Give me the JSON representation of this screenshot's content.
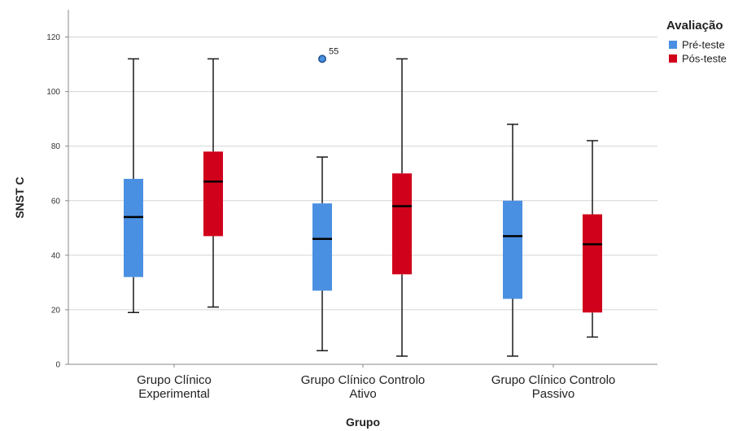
{
  "chart_data": {
    "type": "boxplot",
    "xlabel": "Grupo",
    "ylabel": "SNST C",
    "ylim": [
      0,
      130
    ],
    "yticks": [
      0,
      20,
      40,
      60,
      80,
      100,
      120
    ],
    "grid": "horizontal",
    "legend": {
      "title": "Avaliação",
      "placement": "top-right",
      "items": [
        {
          "name": "Pré-teste",
          "color": "#4a90e2"
        },
        {
          "name": "Pós-teste",
          "color": "#d0021b"
        }
      ]
    },
    "categories": [
      [
        "Grupo Clínico",
        "Experimental"
      ],
      [
        "Grupo Clínico Controlo",
        "Ativo"
      ],
      [
        "Grupo Clínico Controlo",
        "Passivo"
      ]
    ],
    "series": [
      {
        "name": "Pré-teste",
        "color": "#4a90e2",
        "boxes": [
          {
            "min": 19,
            "q1": 32,
            "median": 54,
            "q3": 68,
            "max": 112
          },
          {
            "min": 5,
            "q1": 27,
            "median": 46,
            "q3": 59,
            "max": 76
          },
          {
            "min": 3,
            "q1": 24,
            "median": 47,
            "q3": 60,
            "max": 88
          }
        ]
      },
      {
        "name": "Pós-teste",
        "color": "#d0021b",
        "boxes": [
          {
            "min": 21,
            "q1": 47,
            "median": 67,
            "q3": 78,
            "max": 112
          },
          {
            "min": 3,
            "q1": 33,
            "median": 58,
            "q3": 70,
            "max": 112
          },
          {
            "min": 10,
            "q1": 19,
            "median": 44,
            "q3": 55,
            "max": 82
          }
        ]
      }
    ],
    "outliers": [
      {
        "series": "Pré-teste",
        "category_index": 1,
        "value": 112,
        "label": "55"
      }
    ]
  }
}
